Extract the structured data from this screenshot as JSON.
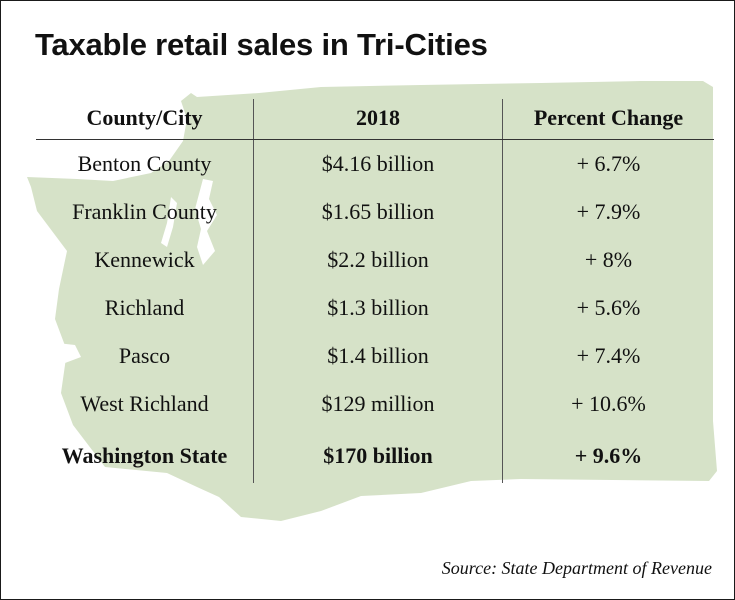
{
  "title": "Taxable retail sales in Tri-Cities",
  "map_fill": "#d6e2c8",
  "table": {
    "headers": [
      "County/City",
      "2018",
      "Percent Change"
    ],
    "rows": [
      {
        "name": "Benton County",
        "sales": "$4.16 billion",
        "change": "+ 6.7%"
      },
      {
        "name": "Franklin County",
        "sales": "$1.65 billion",
        "change": "+ 7.9%"
      },
      {
        "name": "Kennewick",
        "sales": "$2.2 billion",
        "change": "+ 8%"
      },
      {
        "name": "Richland",
        "sales": "$1.3 billion",
        "change": "+ 5.6%"
      },
      {
        "name": "Pasco",
        "sales": "$1.4 billion",
        "change": "+ 7.4%"
      },
      {
        "name": "West Richland",
        "sales": "$129 million",
        "change": "+ 10.6%"
      },
      {
        "name": "Washington State",
        "sales": "$170 billion",
        "change": "+ 9.6%"
      }
    ]
  },
  "source": "Source: State Department of Revenue"
}
